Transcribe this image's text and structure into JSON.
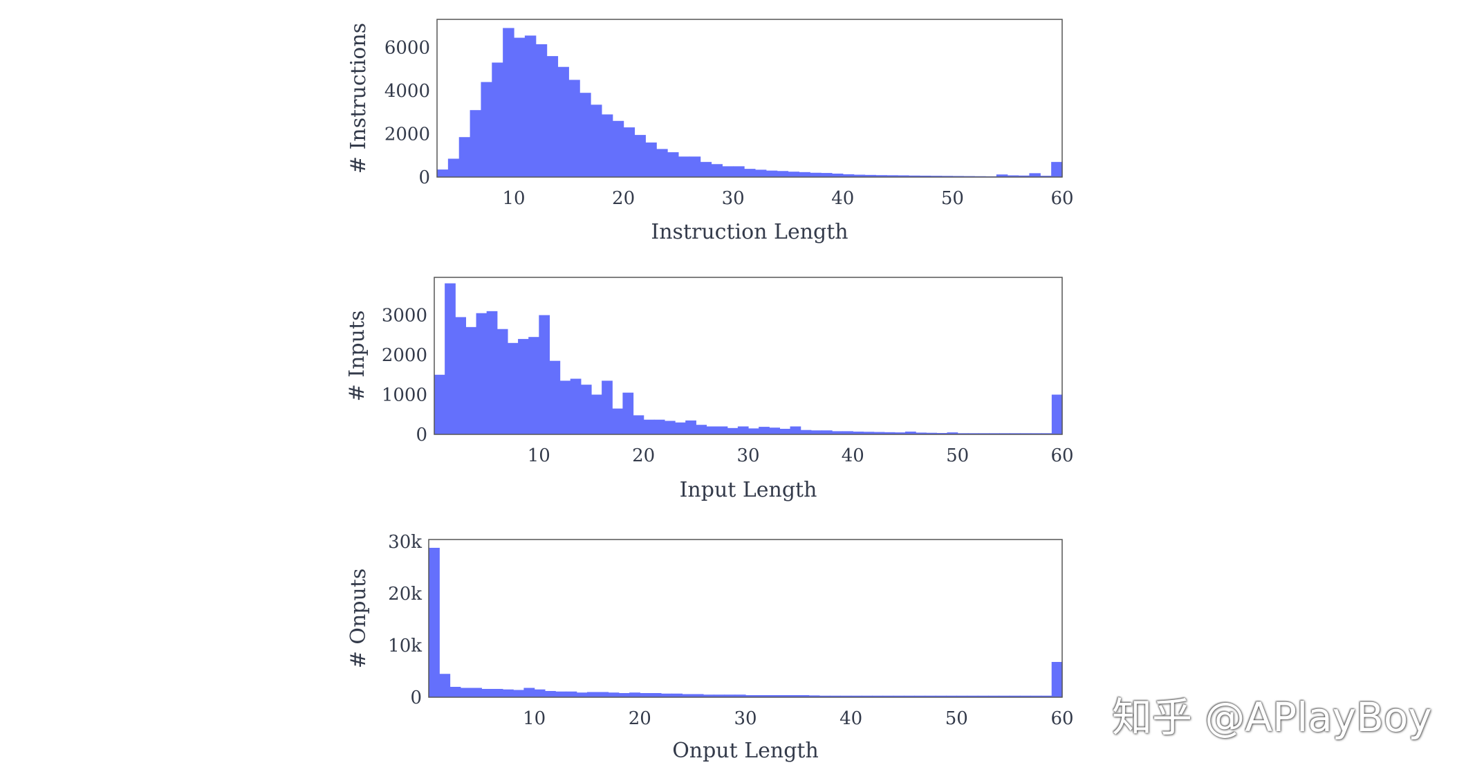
{
  "watermark": "知乎 @APlayBoy",
  "colors": {
    "bar": "#6470fc",
    "frame": "#555555",
    "text": "#333a4a"
  },
  "chart_data": [
    {
      "type": "bar",
      "title": "",
      "xlabel": "Instruction Length",
      "ylabel": "# Instructions",
      "xlim": [
        3,
        60
      ],
      "ylim": [
        0,
        7300
      ],
      "xticks": [
        10,
        20,
        30,
        40,
        50,
        60
      ],
      "xtick_labels": [
        "10",
        "20",
        "30",
        "40",
        "50",
        "60"
      ],
      "yticks": [
        0,
        2000,
        4000,
        6000
      ],
      "ytick_labels": [
        "0",
        "2000",
        "4000",
        "6000"
      ],
      "grid": false,
      "bin_edges": [
        3,
        4,
        5,
        6,
        7,
        8,
        9,
        10,
        11,
        12,
        13,
        14,
        15,
        16,
        17,
        18,
        19,
        20,
        21,
        22,
        23,
        24,
        25,
        26,
        27,
        28,
        29,
        30,
        31,
        32,
        33,
        34,
        35,
        36,
        37,
        38,
        39,
        40,
        41,
        42,
        43,
        44,
        45,
        46,
        47,
        48,
        49,
        50,
        51,
        52,
        53,
        54,
        55,
        56,
        57,
        58,
        59,
        60
      ],
      "values": [
        350,
        850,
        1850,
        3100,
        4400,
        5300,
        6900,
        6450,
        6550,
        6150,
        5600,
        5100,
        4500,
        3900,
        3350,
        2900,
        2600,
        2300,
        1950,
        1600,
        1300,
        1150,
        950,
        950,
        700,
        600,
        500,
        500,
        380,
        340,
        300,
        280,
        250,
        230,
        200,
        190,
        160,
        130,
        110,
        100,
        90,
        85,
        80,
        70,
        65,
        60,
        55,
        50,
        45,
        40,
        35,
        120,
        80,
        70,
        180,
        60,
        700
      ]
    },
    {
      "type": "bar",
      "title": "",
      "xlabel": "Input Length",
      "ylabel": "# Inputs",
      "xlim": [
        0,
        60
      ],
      "ylim": [
        0,
        3950
      ],
      "xticks": [
        10,
        20,
        30,
        40,
        50,
        60
      ],
      "xtick_labels": [
        "10",
        "20",
        "30",
        "40",
        "50",
        "60"
      ],
      "yticks": [
        0,
        1000,
        2000,
        3000
      ],
      "ytick_labels": [
        "0",
        "1000",
        "2000",
        "3000"
      ],
      "grid": false,
      "bin_edges": [
        0,
        1,
        2,
        3,
        4,
        5,
        6,
        7,
        8,
        9,
        10,
        11,
        12,
        13,
        14,
        15,
        16,
        17,
        18,
        19,
        20,
        21,
        22,
        23,
        24,
        25,
        26,
        27,
        28,
        29,
        30,
        31,
        32,
        33,
        34,
        35,
        36,
        37,
        38,
        39,
        40,
        41,
        42,
        43,
        44,
        45,
        46,
        47,
        48,
        49,
        50,
        51,
        52,
        53,
        54,
        55,
        56,
        57,
        58,
        59,
        60
      ],
      "values": [
        1500,
        3800,
        2950,
        2700,
        3050,
        3100,
        2650,
        2300,
        2400,
        2450,
        3000,
        1850,
        1350,
        1400,
        1250,
        1000,
        1350,
        650,
        1050,
        480,
        370,
        370,
        340,
        300,
        350,
        240,
        200,
        200,
        160,
        200,
        150,
        190,
        170,
        140,
        200,
        110,
        100,
        100,
        80,
        80,
        70,
        65,
        60,
        55,
        50,
        70,
        45,
        40,
        35,
        50,
        30,
        30,
        30,
        30,
        30,
        30,
        30,
        30,
        30,
        1000
      ]
    },
    {
      "type": "bar",
      "title": "",
      "xlabel": "Onput Length",
      "ylabel": "# Onputs",
      "xlim": [
        0,
        60
      ],
      "ylim": [
        0,
        30400
      ],
      "xticks": [
        10,
        20,
        30,
        40,
        50,
        60
      ],
      "xtick_labels": [
        "10",
        "20",
        "30",
        "40",
        "50",
        "60"
      ],
      "yticks": [
        0,
        10000,
        20000,
        30000
      ],
      "ytick_labels": [
        "0",
        "10k",
        "20k",
        "30k"
      ],
      "grid": false,
      "bin_edges": [
        0,
        1,
        2,
        3,
        4,
        5,
        6,
        7,
        8,
        9,
        10,
        11,
        12,
        13,
        14,
        15,
        16,
        17,
        18,
        19,
        20,
        21,
        22,
        23,
        24,
        25,
        26,
        27,
        28,
        29,
        30,
        31,
        32,
        33,
        34,
        35,
        36,
        37,
        38,
        39,
        40,
        41,
        42,
        43,
        44,
        45,
        46,
        47,
        48,
        49,
        50,
        51,
        52,
        53,
        54,
        55,
        56,
        57,
        58,
        59,
        60
      ],
      "values": [
        28800,
        4500,
        2000,
        1800,
        1800,
        1600,
        1600,
        1500,
        1400,
        1800,
        1500,
        1200,
        1100,
        1100,
        900,
        1000,
        1000,
        900,
        800,
        900,
        800,
        800,
        700,
        700,
        600,
        600,
        500,
        500,
        500,
        500,
        400,
        400,
        400,
        400,
        400,
        400,
        350,
        300,
        300,
        300,
        300,
        300,
        300,
        300,
        300,
        300,
        300,
        300,
        300,
        300,
        300,
        300,
        300,
        300,
        300,
        300,
        300,
        300,
        300,
        6800
      ]
    }
  ]
}
